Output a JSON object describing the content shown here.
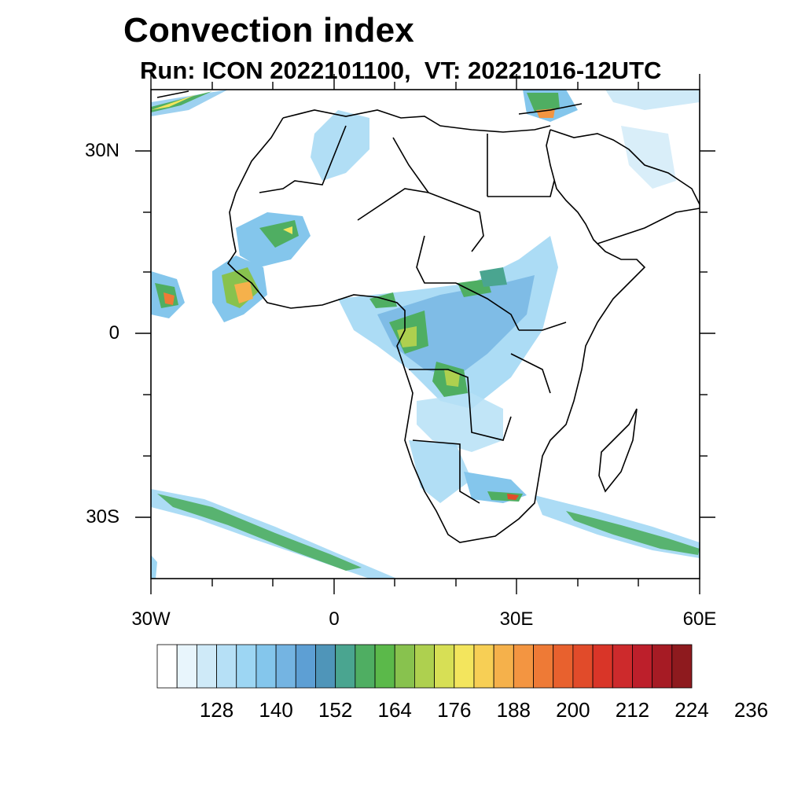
{
  "title": "Convection index",
  "subtitle": "Run: ICON 2022101100,  VT: 20221016-12UTC",
  "axes": {
    "lat_labels": [
      "30N",
      "0",
      "30S"
    ],
    "lon_labels": [
      "30W",
      "0",
      "30E",
      "60E"
    ]
  },
  "colorbar": {
    "tick_labels": [
      "128",
      "140",
      "152",
      "164",
      "176",
      "188",
      "200",
      "212",
      "224",
      "236"
    ],
    "colors": [
      "#ffffff",
      "#e8f5fc",
      "#cfeaf8",
      "#b6e0f6",
      "#9dd6f3",
      "#84c6ec",
      "#74b4e2",
      "#5d9fd4",
      "#4f95b9",
      "#4aa590",
      "#4fae62",
      "#5bb94a",
      "#88c24e",
      "#aed04f",
      "#d7df55",
      "#f3e55d",
      "#f7cf55",
      "#f5b14b",
      "#f39541",
      "#ee7a36",
      "#e8612e",
      "#e14b2a",
      "#d93528",
      "#cd2a2c",
      "#bd1f2b",
      "#a61b24",
      "#8e1a1e"
    ]
  }
}
